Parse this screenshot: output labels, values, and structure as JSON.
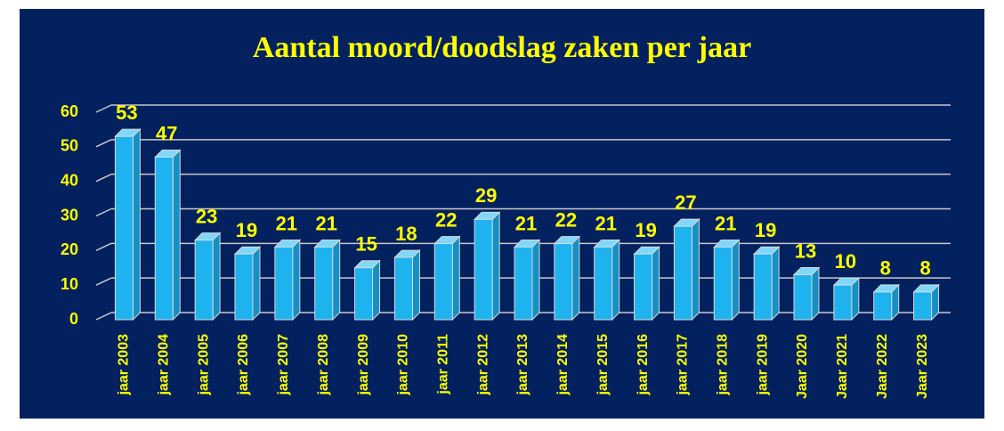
{
  "chart_data": {
    "type": "bar3d",
    "title": "Aantal moord/doodslag zaken per jaar",
    "categories": [
      "jaar 2003",
      "jaar 2004",
      "jaar 2005",
      "jaar 2006",
      "jaar 2007",
      "jaar 2008",
      "jaar 2009",
      "jaar 2010",
      "jaar 2011",
      "jaar 2012",
      "jaar 2013",
      "jaar 2014",
      "jaar 2015",
      "jaar 2016",
      "jaar 2017",
      "jaar 2018",
      "jaar 2019",
      "Jaar 2020",
      "Jaar 2021",
      "Jaar 2022",
      "Jaar 2023"
    ],
    "values": [
      53,
      47,
      23,
      19,
      21,
      21,
      15,
      18,
      22,
      29,
      21,
      22,
      21,
      19,
      27,
      21,
      19,
      13,
      10,
      8,
      8
    ],
    "color": "#1eb3ef",
    "ylim": [
      0,
      60
    ],
    "yticks": [
      0,
      10,
      20,
      30,
      40,
      50,
      60
    ],
    "grid": true
  }
}
